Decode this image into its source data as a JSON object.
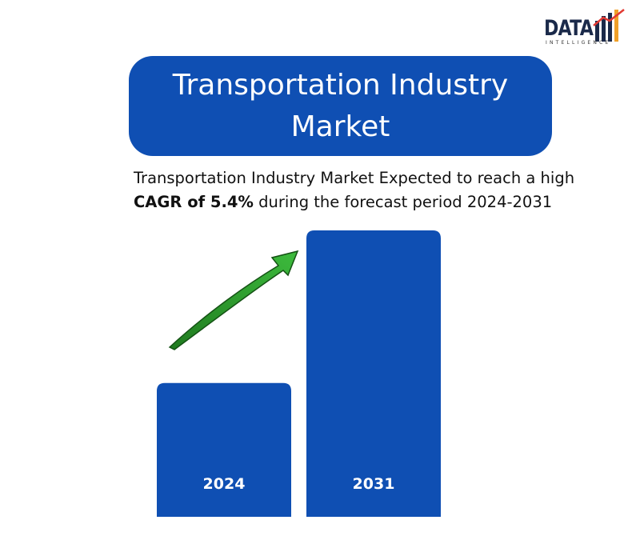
{
  "logo": {
    "text": "DATA",
    "subtext": "INTELLIGENCE",
    "bar_colors": [
      "#f0a028",
      "#e23a33"
    ]
  },
  "title": "Transportation Industry Market",
  "subtitle": {
    "line1": "Transportation Industry Market Expected to reach a high",
    "bold": "CAGR of 5.4%",
    "rest": " during the forecast period 2024-2031"
  },
  "colors": {
    "primary": "#0f4fb3",
    "arrow": "#2aa12a"
  },
  "chart_data": {
    "type": "bar",
    "categories": [
      "2024",
      "2031"
    ],
    "values": [
      1.0,
      2.14
    ],
    "title": "",
    "xlabel": "",
    "ylabel": "",
    "ylim": [
      0,
      2.14
    ],
    "annotation": "growth arrow"
  }
}
